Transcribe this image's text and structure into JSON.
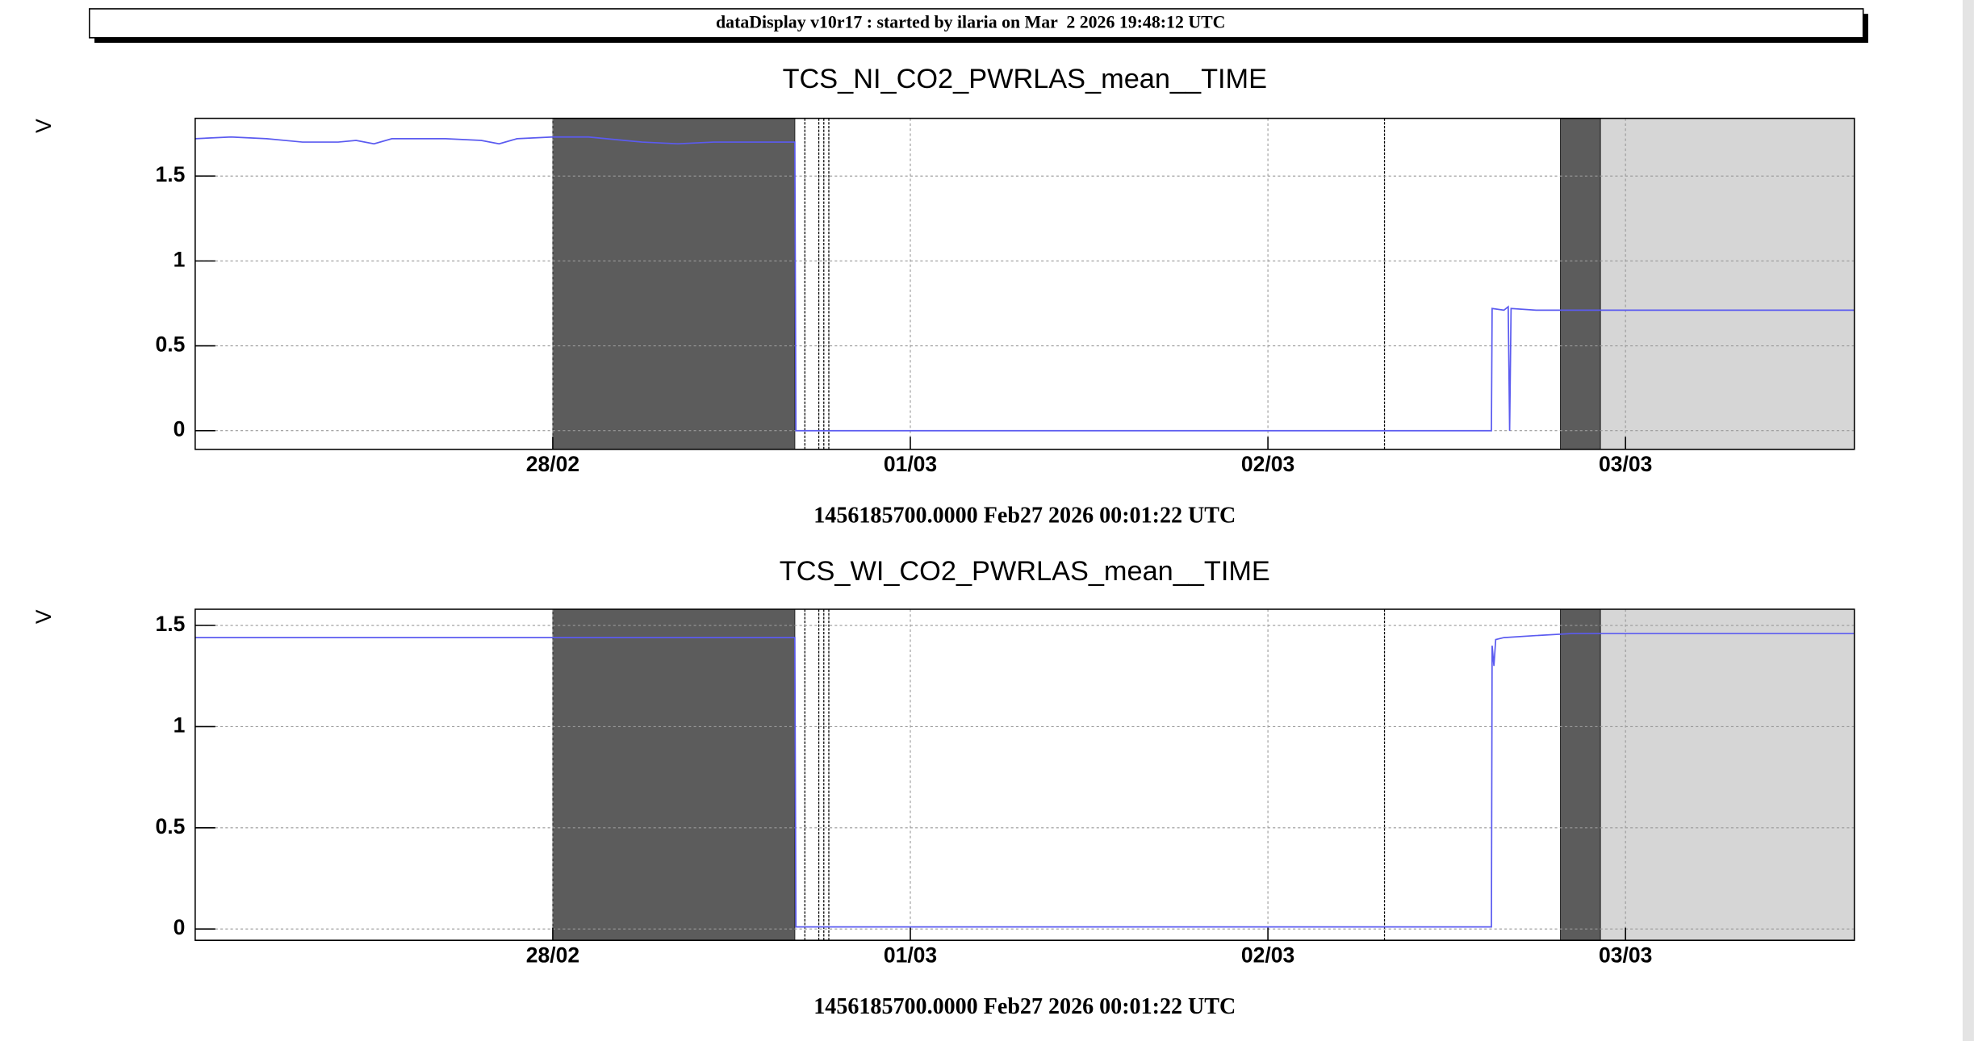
{
  "header": {
    "title": "dataDisplay v10r17 : started by ilaria on Mar  2 2026 19:48:12 UTC"
  },
  "chart_data": [
    {
      "type": "line",
      "title": "TCS_NI_CO2_PWRLAS_mean__TIME",
      "y_label": "V",
      "x_label": "1456185700.0000 Feb27 2026 00:01:22 UTC",
      "color": "#5b5bf0",
      "grid": true,
      "x": [
        0,
        0.1,
        0.2,
        0.3,
        0.4,
        0.45,
        0.5,
        0.55,
        0.7,
        0.8,
        0.85,
        0.9,
        1.0,
        1.1,
        1.2,
        1.25,
        1.35,
        1.45,
        1.5,
        1.677,
        1.68,
        3.625,
        3.627,
        3.66,
        3.672,
        3.676,
        3.68,
        3.75,
        4.64
      ],
      "values": [
        1.72,
        1.73,
        1.72,
        1.7,
        1.7,
        1.71,
        1.69,
        1.72,
        1.72,
        1.71,
        1.69,
        1.72,
        1.73,
        1.73,
        1.71,
        1.7,
        1.69,
        1.7,
        1.7,
        1.7,
        0,
        0,
        0.72,
        0.71,
        0.73,
        0,
        0.72,
        0.71,
        0.71
      ],
      "xlim": [
        0,
        4.64
      ],
      "ylim": [
        -0.11,
        1.84
      ],
      "xticks": [
        {
          "value": 1,
          "label": "28/02"
        },
        {
          "value": 2,
          "label": "01/03"
        },
        {
          "value": 3,
          "label": "02/03"
        },
        {
          "value": 4,
          "label": "03/03"
        }
      ],
      "yticks": [
        0,
        0.5,
        1,
        1.5
      ],
      "bands": [
        {
          "from": 1.0,
          "to": 1.677,
          "color": "#5c5c5c"
        },
        {
          "from": 3.818,
          "to": 3.93,
          "color": "#5c5c5c"
        },
        {
          "from": 3.93,
          "to": 4.64,
          "color": "#d6d6d6"
        }
      ],
      "markers": [
        1.705,
        1.744,
        1.758,
        1.772,
        3.326
      ]
    },
    {
      "type": "line",
      "title": "TCS_WI_CO2_PWRLAS_mean__TIME",
      "y_label": "V",
      "x_label": "1456185700.0000 Feb27 2026 00:01:22 UTC",
      "color": "#5b5bf0",
      "grid": true,
      "x": [
        0,
        1.677,
        1.68,
        3.625,
        3.627,
        3.632,
        3.637,
        3.66,
        3.75,
        3.85,
        4.64
      ],
      "values": [
        1.44,
        1.44,
        0.01,
        0.01,
        1.4,
        1.3,
        1.43,
        1.44,
        1.45,
        1.46,
        1.46
      ],
      "xlim": [
        0,
        4.64
      ],
      "ylim": [
        -0.056,
        1.58
      ],
      "xticks": [
        {
          "value": 1,
          "label": "28/02"
        },
        {
          "value": 2,
          "label": "01/03"
        },
        {
          "value": 3,
          "label": "02/03"
        },
        {
          "value": 4,
          "label": "03/03"
        }
      ],
      "yticks": [
        0,
        0.5,
        1,
        1.5
      ],
      "bands": [
        {
          "from": 1.0,
          "to": 1.677,
          "color": "#5c5c5c"
        },
        {
          "from": 3.818,
          "to": 3.93,
          "color": "#5c5c5c"
        },
        {
          "from": 3.93,
          "to": 4.64,
          "color": "#d6d6d6"
        }
      ],
      "markers": [
        1.705,
        1.744,
        1.758,
        1.772,
        3.326
      ]
    }
  ]
}
